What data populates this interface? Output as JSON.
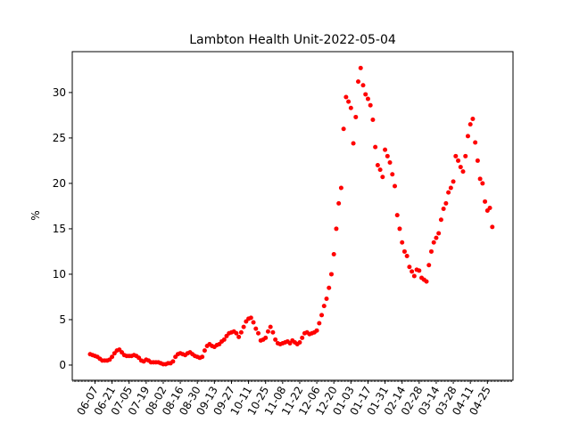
{
  "chart_data": {
    "type": "scatter",
    "title": "Lambton Health Unit-2022-05-04",
    "y_label": "%",
    "x": [
      "06-03",
      "06-05",
      "06-07",
      "06-09",
      "06-11",
      "06-13",
      "06-15",
      "06-17",
      "06-19",
      "06-21",
      "06-23",
      "06-25",
      "06-27",
      "06-29",
      "07-01",
      "07-03",
      "07-05",
      "07-07",
      "07-09",
      "07-11",
      "07-13",
      "07-15",
      "07-17",
      "07-19",
      "07-21",
      "07-23",
      "07-25",
      "07-27",
      "07-29",
      "07-31",
      "08-02",
      "08-04",
      "08-06",
      "08-08",
      "08-10",
      "08-12",
      "08-14",
      "08-16",
      "08-18",
      "08-20",
      "08-22",
      "08-24",
      "08-26",
      "08-28",
      "08-30",
      "09-01",
      "09-03",
      "09-05",
      "09-07",
      "09-09",
      "09-11",
      "09-13",
      "09-15",
      "09-17",
      "09-19",
      "09-21",
      "09-23",
      "09-25",
      "09-27",
      "09-29",
      "10-01",
      "10-03",
      "10-05",
      "10-07",
      "10-09",
      "10-11",
      "10-13",
      "10-15",
      "10-17",
      "10-19",
      "10-21",
      "10-23",
      "10-25",
      "10-27",
      "10-29",
      "10-31",
      "11-02",
      "11-04",
      "11-06",
      "11-08",
      "11-10",
      "11-12",
      "11-14",
      "11-16",
      "11-18",
      "11-20",
      "11-22",
      "11-24",
      "11-26",
      "11-28",
      "11-30",
      "12-02",
      "12-04",
      "12-06",
      "12-08",
      "12-10",
      "12-12",
      "12-14",
      "12-16",
      "12-18",
      "12-20",
      "12-22",
      "12-24",
      "12-26",
      "12-28",
      "12-30",
      "01-01",
      "01-03",
      "01-05",
      "01-07",
      "01-09",
      "01-11",
      "01-13",
      "01-15",
      "01-17",
      "01-19",
      "01-21",
      "01-23",
      "01-25",
      "01-27",
      "01-29",
      "01-31",
      "02-02",
      "02-04",
      "02-06",
      "02-08",
      "02-10",
      "02-12",
      "02-14",
      "02-16",
      "02-18",
      "02-20",
      "02-22",
      "02-24",
      "02-26",
      "02-28",
      "03-02",
      "03-04",
      "03-06",
      "03-08",
      "03-10",
      "03-12",
      "03-14",
      "03-16",
      "03-18",
      "03-20",
      "03-22",
      "03-24",
      "03-26",
      "03-28",
      "03-30",
      "04-01",
      "04-03",
      "04-05",
      "04-07",
      "04-09",
      "04-11",
      "04-13",
      "04-15",
      "04-17",
      "04-19",
      "04-21",
      "04-23",
      "04-25",
      "04-27",
      "04-29"
    ],
    "series": [
      {
        "color": "#ff0000",
        "values": [
          1.2,
          1.1,
          1.0,
          0.9,
          0.7,
          0.5,
          0.5,
          0.5,
          0.6,
          0.9,
          1.3,
          1.6,
          1.7,
          1.4,
          1.1,
          1.0,
          1.0,
          1.0,
          1.1,
          1.0,
          0.8,
          0.5,
          0.4,
          0.6,
          0.5,
          0.3,
          0.3,
          0.3,
          0.3,
          0.2,
          0.1,
          0.1,
          0.2,
          0.2,
          0.4,
          0.9,
          1.2,
          1.3,
          1.2,
          1.1,
          1.3,
          1.4,
          1.2,
          1.0,
          0.9,
          0.8,
          0.9,
          1.6,
          2.1,
          2.3,
          2.1,
          2.0,
          2.2,
          2.3,
          2.6,
          2.8,
          3.2,
          3.5,
          3.6,
          3.7,
          3.5,
          3.1,
          3.6,
          4.2,
          4.8,
          5.1,
          5.2,
          4.7,
          4.0,
          3.5,
          2.7,
          2.8,
          3.0,
          3.7,
          4.2,
          3.6,
          2.8,
          2.4,
          2.3,
          2.4,
          2.5,
          2.6,
          2.4,
          2.7,
          2.5,
          2.3,
          2.5,
          3.0,
          3.5,
          3.6,
          3.4,
          3.5,
          3.6,
          3.8,
          4.6,
          5.5,
          6.5,
          7.3,
          8.5,
          10.0,
          12.2,
          15.0,
          17.8,
          19.5,
          26.0,
          29.5,
          29.0,
          28.3,
          24.4,
          27.3,
          31.2,
          32.7,
          30.8,
          29.8,
          29.3,
          28.6,
          27.0,
          24.0,
          22.0,
          21.5,
          20.7,
          23.7,
          23.0,
          22.3,
          21.0,
          19.7,
          16.5,
          15.0,
          13.5,
          12.5,
          12.0,
          10.8,
          10.3,
          9.8,
          10.5,
          10.4,
          9.6,
          9.4,
          9.2,
          11.0,
          12.5,
          13.5,
          14.0,
          14.5,
          16.0,
          17.2,
          17.8,
          19.0,
          19.5,
          20.2,
          23.0,
          22.5,
          21.8,
          21.3,
          23.0,
          25.2,
          26.5,
          27.1,
          24.5,
          22.5,
          20.5,
          20.0,
          18.0,
          17.0,
          17.3,
          15.2
        ]
      }
    ],
    "xticks": [
      "06-07",
      "06-21",
      "07-05",
      "07-19",
      "08-02",
      "08-16",
      "08-30",
      "09-13",
      "09-27",
      "10-11",
      "10-25",
      "11-08",
      "11-22",
      "12-06",
      "12-20",
      "01-03",
      "01-17",
      "01-31",
      "02-14",
      "02-28",
      "03-14",
      "03-28",
      "04-11",
      "04-25"
    ],
    "ylim": [
      -1.67,
      34.5
    ],
    "yticks": [
      0,
      5,
      10,
      15,
      20,
      25,
      30
    ]
  }
}
